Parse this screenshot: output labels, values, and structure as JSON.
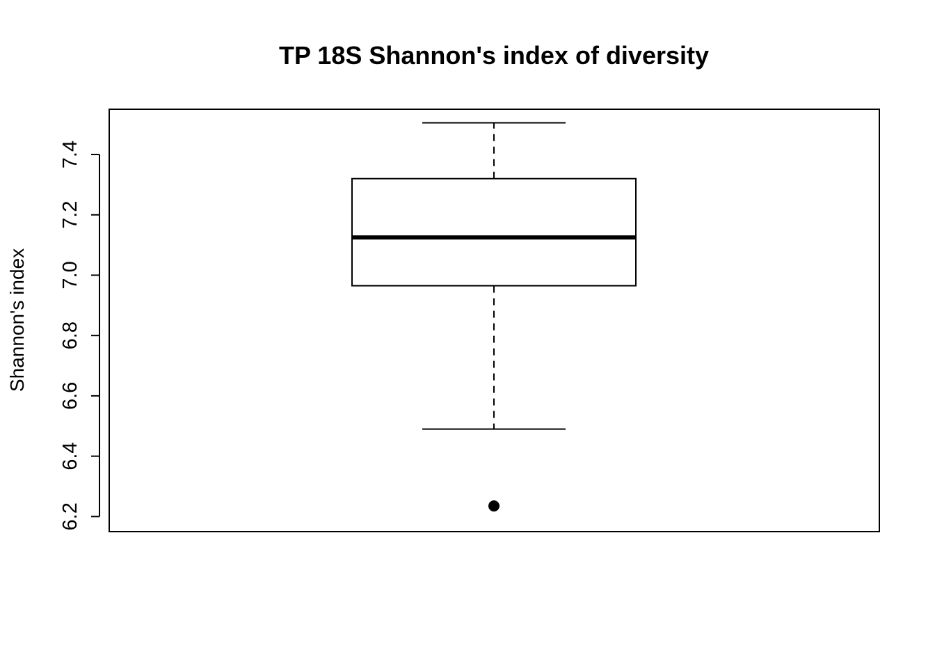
{
  "chart_data": {
    "type": "box",
    "title": "TP 18S Shannon's index of diversity",
    "xlabel": "",
    "ylabel": "Shannon's index",
    "ylim": [
      6.15,
      7.55
    ],
    "yticks": [
      6.2,
      6.4,
      6.6,
      6.8,
      7.0,
      7.2,
      7.4
    ],
    "ytick_labels": [
      "6.2",
      "6.4",
      "6.6",
      "6.8",
      "7.0",
      "7.2",
      "7.4"
    ],
    "grid": false,
    "box": {
      "whisker_low": 6.49,
      "q1": 6.965,
      "median": 7.125,
      "q3": 7.32,
      "whisker_high": 7.505,
      "outliers": [
        6.235
      ]
    },
    "colors": {
      "line": "#000000",
      "box_fill": "#ffffff"
    }
  }
}
